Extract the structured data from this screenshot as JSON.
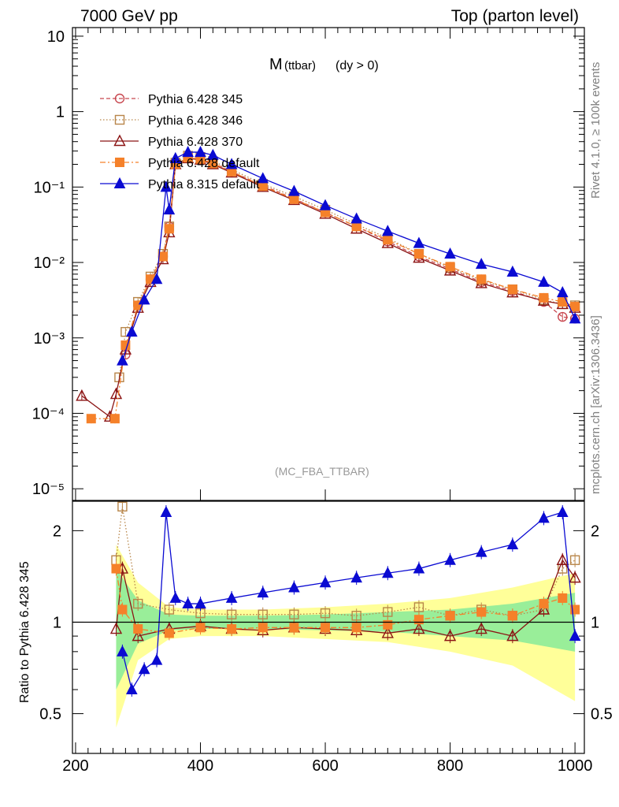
{
  "header": {
    "left": "7000 GeV pp",
    "right": "Top (parton level)"
  },
  "plot_title": {
    "main": "M",
    "sub": "(ttbar)",
    "cond": "(dy > 0)"
  },
  "watermark": "(MC_FBA_TTBAR)",
  "side_texts": {
    "rivet": "Rivet 4.1.0, ≥ 100k events",
    "mcplots": "mcplots.cern.ch [arXiv:1306.3436]"
  },
  "ratio_ylabel": "Ratio to Pythia 6.428 345",
  "colors": {
    "p345": "#c8474f",
    "p346": "#b8864a",
    "p370": "#8b1414",
    "pdef": "#f5812a",
    "p8": "#0a0ad2",
    "band_yellow": "#ffff99",
    "band_green": "#99ee99"
  },
  "chart_data": [
    {
      "type": "line",
      "title": "M (ttbar) (dy > 0)",
      "xlabel": "",
      "ylabel": "",
      "xlim": [
        195,
        1015
      ],
      "ylim": [
        7e-06,
        13
      ],
      "yscale": "log",
      "ytick_labels": [
        "10",
        "1",
        "10⁻¹",
        "10⁻²",
        "10⁻³",
        "10⁻⁴",
        "10⁻⁵"
      ],
      "ytick_values": [
        10,
        1,
        0.1,
        0.01,
        0.001,
        0.0001,
        1e-05
      ],
      "legend_position": "top-left",
      "series": [
        {
          "name": "Pythia 6.428 345",
          "key": "p345",
          "marker": "open-circle",
          "dash": "dashed",
          "x": [
            280,
            300,
            320,
            340,
            350,
            360,
            380,
            400,
            420,
            450,
            500,
            550,
            600,
            650,
            700,
            750,
            800,
            850,
            900,
            950,
            980,
            1000
          ],
          "y": [
            0.0006,
            0.0027,
            0.006,
            0.012,
            0.03,
            0.2,
            0.25,
            0.24,
            0.21,
            0.16,
            0.105,
            0.07,
            0.046,
            0.03,
            0.019,
            0.012,
            0.0082,
            0.0055,
            0.0042,
            0.003,
            0.0019,
            0.0018
          ]
        },
        {
          "name": "Pythia 6.428 346",
          "key": "p346",
          "marker": "open-square",
          "dash": "dotted",
          "x": [
            270,
            280,
            300,
            320,
            340,
            350,
            360,
            380,
            400,
            420,
            450,
            500,
            550,
            600,
            650,
            700,
            750,
            800,
            850,
            900,
            950,
            980,
            1000
          ],
          "y": [
            0.0003,
            0.0012,
            0.003,
            0.0065,
            0.013,
            0.03,
            0.21,
            0.26,
            0.25,
            0.22,
            0.17,
            0.11,
            0.075,
            0.05,
            0.032,
            0.021,
            0.013,
            0.0085,
            0.0058,
            0.0044,
            0.0032,
            0.0028,
            0.0027
          ]
        },
        {
          "name": "Pythia 6.428 370",
          "key": "p370",
          "marker": "open-triangle",
          "dash": "solid",
          "x": [
            210,
            255,
            265,
            280,
            300,
            320,
            340,
            350,
            360,
            380,
            400,
            420,
            450,
            500,
            550,
            600,
            650,
            700,
            750,
            800,
            850,
            900,
            950,
            980,
            1000
          ],
          "y": [
            0.00017,
            9e-05,
            0.00018,
            0.0007,
            0.0025,
            0.0055,
            0.011,
            0.025,
            0.2,
            0.24,
            0.23,
            0.2,
            0.155,
            0.1,
            0.067,
            0.044,
            0.028,
            0.018,
            0.0115,
            0.0078,
            0.0053,
            0.004,
            0.0031,
            0.0028,
            0.0025
          ]
        },
        {
          "name": "Pythia 6.428 default",
          "key": "pdef",
          "marker": "filled-square",
          "dash": "dashdot",
          "x": [
            225,
            263,
            280,
            300,
            320,
            340,
            350,
            360,
            380,
            400,
            420,
            450,
            500,
            550,
            600,
            650,
            700,
            750,
            800,
            850,
            900,
            950,
            980,
            1000
          ],
          "y": [
            8.5e-05,
            8.5e-05,
            0.0008,
            0.0027,
            0.006,
            0.012,
            0.028,
            0.2,
            0.245,
            0.235,
            0.205,
            0.16,
            0.103,
            0.069,
            0.046,
            0.03,
            0.02,
            0.013,
            0.0088,
            0.006,
            0.0044,
            0.0034,
            0.003,
            0.0026
          ]
        },
        {
          "name": "Pythia 8.315 default",
          "key": "p8",
          "marker": "filled-triangle",
          "dash": "solid",
          "x": [
            275,
            290,
            310,
            330,
            345,
            350,
            360,
            380,
            400,
            420,
            450,
            500,
            550,
            600,
            650,
            700,
            750,
            800,
            850,
            900,
            950,
            980,
            1000
          ],
          "y": [
            0.0005,
            0.0012,
            0.0032,
            0.006,
            0.1,
            0.05,
            0.24,
            0.29,
            0.29,
            0.265,
            0.2,
            0.13,
            0.088,
            0.057,
            0.038,
            0.026,
            0.018,
            0.013,
            0.0095,
            0.0075,
            0.0055,
            0.004,
            0.0018
          ]
        }
      ]
    },
    {
      "type": "line",
      "title": "",
      "xlabel": "",
      "ylabel": "Ratio to Pythia 6.428 345",
      "xlim": [
        195,
        1015
      ],
      "ylim": [
        0.37,
        2.5
      ],
      "yscale": "log",
      "xtick_labels": [
        "200",
        "400",
        "600",
        "800",
        "1000"
      ],
      "xtick_values": [
        200,
        400,
        600,
        800,
        1000
      ],
      "ytick_labels": [
        "2",
        "1",
        "0.5"
      ],
      "ytick_values": [
        2,
        1,
        0.5
      ],
      "reference_line": 1,
      "bands": {
        "x": [
          265,
          300,
          350,
          400,
          500,
          600,
          700,
          800,
          900,
          1000
        ],
        "yellow_lo": [
          0.45,
          0.75,
          0.88,
          0.9,
          0.9,
          0.88,
          0.86,
          0.8,
          0.72,
          0.55
        ],
        "yellow_hi": [
          1.8,
          1.35,
          1.12,
          1.1,
          1.1,
          1.12,
          1.15,
          1.2,
          1.3,
          1.45
        ],
        "green_lo": [
          0.6,
          0.85,
          0.94,
          0.95,
          0.95,
          0.94,
          0.93,
          0.9,
          0.87,
          0.8
        ],
        "green_hi": [
          1.5,
          1.18,
          1.06,
          1.05,
          1.05,
          1.06,
          1.08,
          1.1,
          1.15,
          1.25
        ]
      },
      "series": [
        {
          "name": "Pythia 6.428 346",
          "key": "p346",
          "x": [
            265,
            275,
            300,
            350,
            400,
            450,
            500,
            550,
            600,
            650,
            700,
            750,
            800,
            850,
            900,
            950,
            980,
            1000
          ],
          "y": [
            1.6,
            2.4,
            1.15,
            1.1,
            1.07,
            1.06,
            1.06,
            1.06,
            1.07,
            1.05,
            1.08,
            1.12,
            1.05,
            1.1,
            1.05,
            1.1,
            1.5,
            1.6
          ]
        },
        {
          "name": "Pythia 6.428 370",
          "key": "p370",
          "x": [
            265,
            275,
            300,
            350,
            400,
            450,
            500,
            550,
            600,
            650,
            700,
            750,
            800,
            850,
            900,
            950,
            980,
            1000
          ],
          "y": [
            0.95,
            1.5,
            0.9,
            0.95,
            0.97,
            0.95,
            0.94,
            0.96,
            0.95,
            0.94,
            0.92,
            0.95,
            0.9,
            0.95,
            0.9,
            1.1,
            1.6,
            1.4
          ]
        },
        {
          "name": "Pythia 6.428 default",
          "key": "pdef",
          "x": [
            265,
            275,
            300,
            350,
            400,
            450,
            500,
            550,
            600,
            650,
            700,
            750,
            800,
            850,
            900,
            950,
            980,
            1000
          ],
          "y": [
            1.5,
            1.1,
            0.95,
            0.92,
            0.96,
            0.95,
            0.96,
            0.96,
            0.96,
            0.96,
            0.98,
            1.02,
            1.05,
            1.08,
            1.05,
            1.15,
            1.2,
            1.1
          ]
        },
        {
          "name": "Pythia 8.315 default",
          "key": "p8",
          "x": [
            275,
            290,
            310,
            330,
            345,
            360,
            380,
            400,
            450,
            500,
            550,
            600,
            650,
            700,
            750,
            800,
            850,
            900,
            950,
            980,
            1000
          ],
          "y": [
            0.8,
            0.6,
            0.7,
            0.75,
            2.3,
            1.2,
            1.15,
            1.15,
            1.2,
            1.25,
            1.3,
            1.35,
            1.4,
            1.45,
            1.5,
            1.6,
            1.7,
            1.8,
            2.2,
            2.3,
            0.9
          ]
        }
      ]
    }
  ]
}
